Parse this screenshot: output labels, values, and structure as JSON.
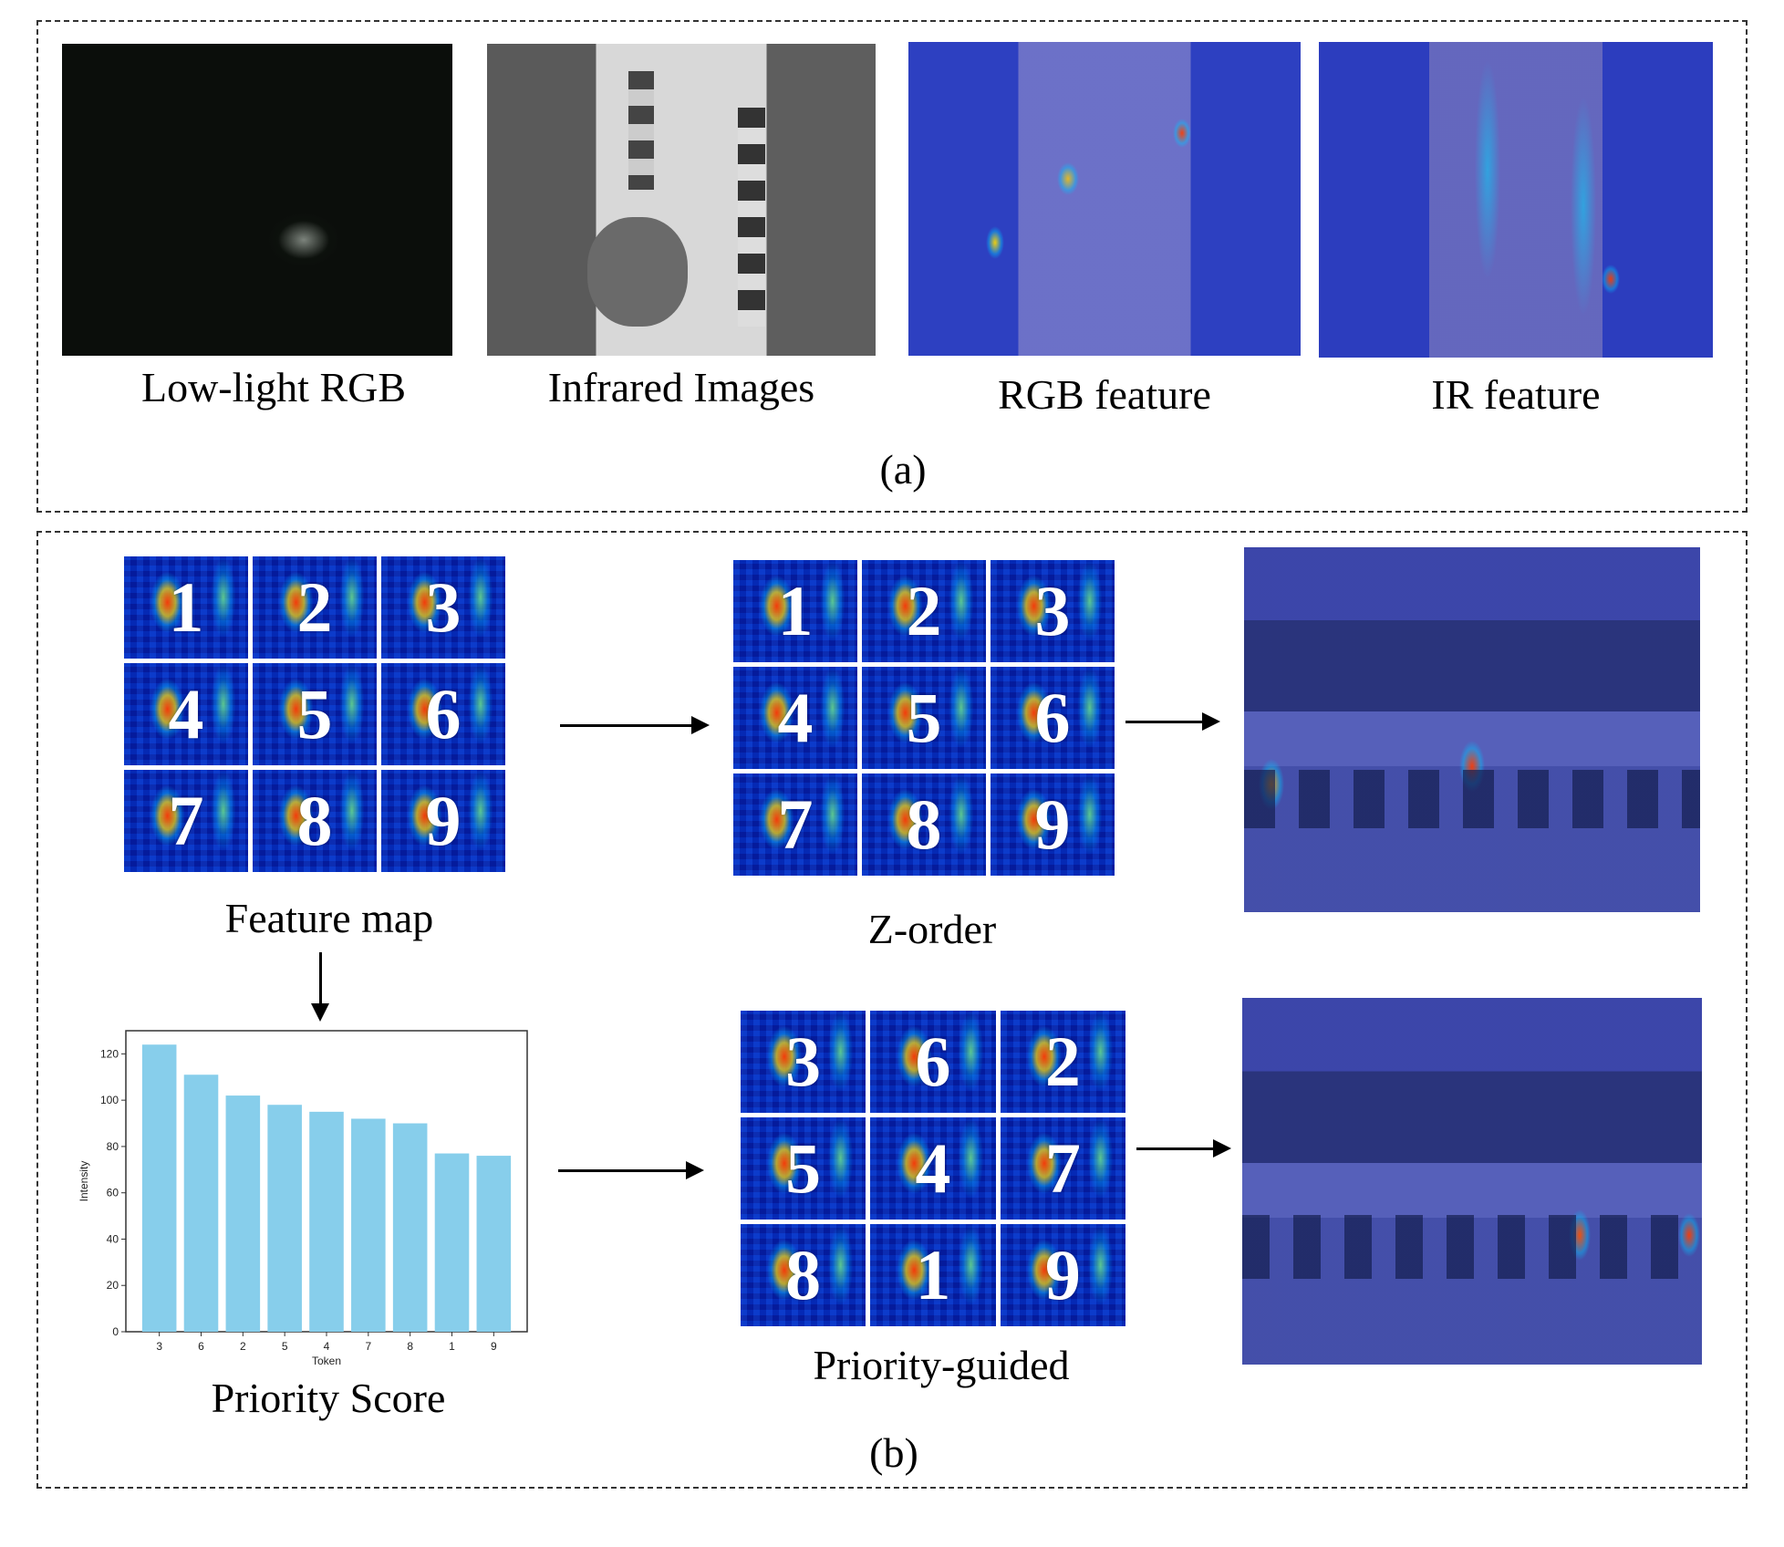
{
  "panel_a": {
    "captions": [
      "Low-light RGB",
      "Infrared Images",
      "RGB feature",
      "IR feature"
    ],
    "label": "(a)"
  },
  "panel_b": {
    "feature_map_caption": "Feature map",
    "zorder_caption": "Z-order",
    "priority_guided_caption": "Priority-guided",
    "priority_score_caption": "Priority Score",
    "label": "(b)",
    "feature_map_tokens": [
      "1",
      "2",
      "3",
      "4",
      "5",
      "6",
      "7",
      "8",
      "9"
    ],
    "zorder_tokens": [
      "1",
      "2",
      "3",
      "4",
      "5",
      "6",
      "7",
      "8",
      "9"
    ],
    "priority_tokens": [
      "3",
      "6",
      "2",
      "5",
      "4",
      "7",
      "8",
      "1",
      "9"
    ]
  },
  "chart_data": {
    "type": "bar",
    "categories": [
      "3",
      "6",
      "2",
      "5",
      "4",
      "7",
      "8",
      "1",
      "9"
    ],
    "values": [
      124,
      111,
      102,
      98,
      95,
      92,
      90,
      77,
      76
    ],
    "xlabel": "Token",
    "ylabel": "Intensity",
    "ylim": [
      0,
      130
    ],
    "yticks": [
      0,
      20,
      40,
      60,
      80,
      100,
      120
    ],
    "bar_color": "#87ceeb",
    "grid": false
  }
}
